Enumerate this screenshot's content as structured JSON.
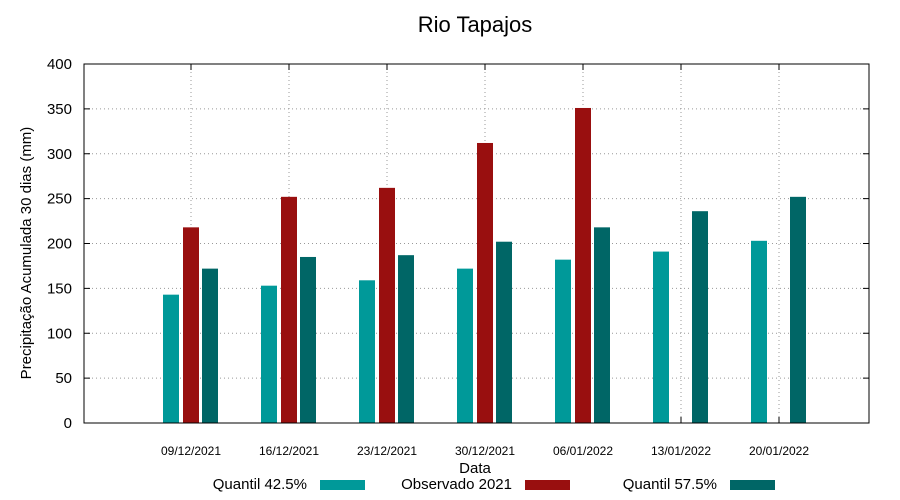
{
  "chart_data": {
    "type": "bar",
    "title": "Rio Tapajos",
    "xlabel": "Data",
    "ylabel": "Precipitação Acumulada 30 dias (mm)",
    "ylim": [
      0,
      400
    ],
    "yticks": [
      0,
      50,
      100,
      150,
      200,
      250,
      300,
      350,
      400
    ],
    "grid": true,
    "legend_position": "bottom",
    "categories": [
      "09/12/2021",
      "16/12/2021",
      "23/12/2021",
      "30/12/2021",
      "06/01/2022",
      "13/01/2022",
      "20/01/2022"
    ],
    "series": [
      {
        "name": "Quantil 42.5%",
        "color": "#009999",
        "values": [
          143,
          153,
          159,
          172,
          182,
          191,
          203
        ]
      },
      {
        "name": "Observado 2021",
        "color": "#990f0f",
        "values": [
          218,
          252,
          262,
          312,
          351,
          null,
          null
        ]
      },
      {
        "name": "Quantil 57.5%",
        "color": "#006666",
        "values": [
          172,
          185,
          187,
          202,
          218,
          236,
          252
        ]
      }
    ]
  }
}
